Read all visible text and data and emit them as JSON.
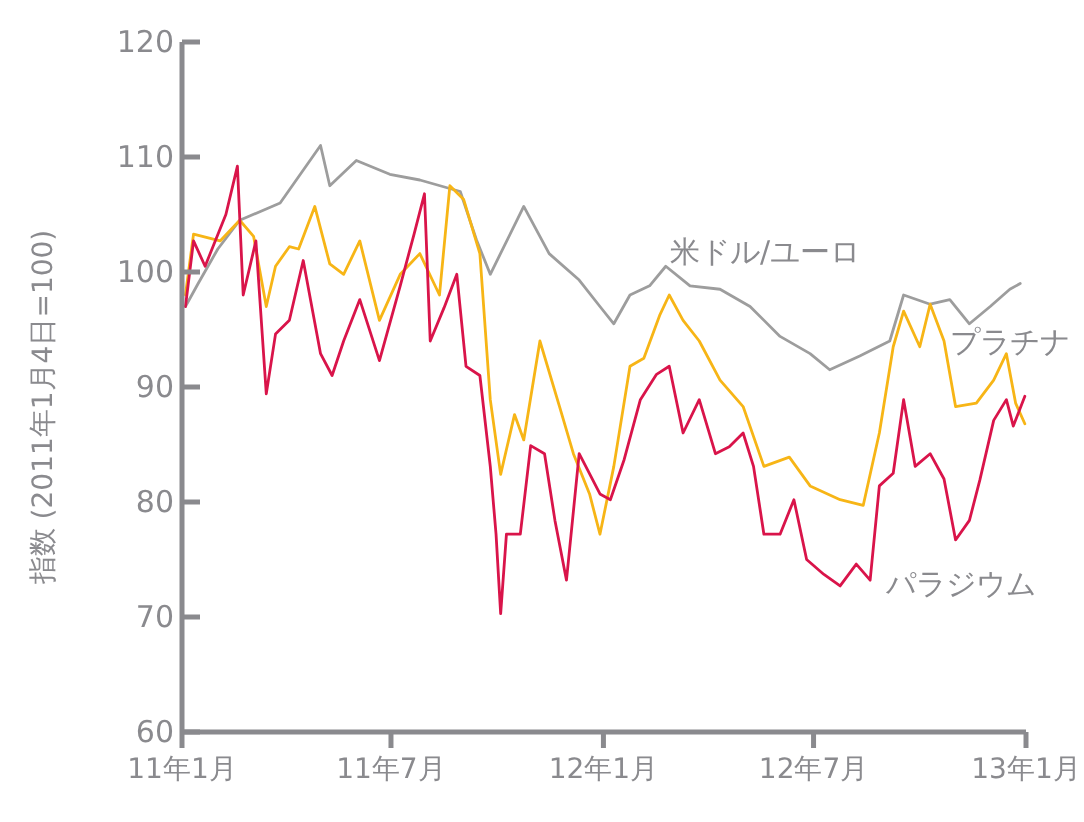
{
  "chart_data": {
    "type": "line",
    "ylabel": "指数 (2011年1月4日=100)",
    "ylim": [
      60,
      120
    ],
    "yticks": [
      60,
      70,
      80,
      90,
      100,
      110,
      120
    ],
    "xlim": [
      "2011-01-01",
      "2013-01-01"
    ],
    "xticks": [
      {
        "value": "2011-01-01",
        "label": "11年1月"
      },
      {
        "value": "2011-07-01",
        "label": "11年7月"
      },
      {
        "value": "2012-01-01",
        "label": "12年1月"
      },
      {
        "value": "2012-07-01",
        "label": "12年7月"
      },
      {
        "value": "2013-01-01",
        "label": "13年1月"
      }
    ],
    "grid": false,
    "legend": false,
    "marker": "none",
    "line_style": "solid",
    "series": [
      {
        "name": "米ドル/ユーロ",
        "color": "#9d9d9d",
        "x": [
          "2011-01-04",
          "2011-01-15",
          "2011-02-01",
          "2011-02-20",
          "2011-03-27",
          "2011-05-01",
          "2011-05-09",
          "2011-06-01",
          "2011-06-30",
          "2011-07-26",
          "2011-08-30",
          "2011-09-13",
          "2011-09-25",
          "2011-10-24",
          "2011-11-15",
          "2011-12-11",
          "2011-12-29",
          "2012-01-10",
          "2012-01-24",
          "2012-02-10",
          "2012-02-24",
          "2012-03-16",
          "2012-04-11",
          "2012-05-07",
          "2012-06-02",
          "2012-06-28",
          "2012-07-15",
          "2012-08-10",
          "2012-09-05",
          "2012-09-17",
          "2012-10-10",
          "2012-10-27",
          "2012-11-13",
          "2012-12-01",
          "2012-12-18",
          "2012-12-27"
        ],
        "values": [
          97,
          99,
          102,
          104.5,
          106,
          111,
          107.5,
          109.7,
          108.5,
          108,
          107,
          102.8,
          99.8,
          105.7,
          101.6,
          99.3,
          97,
          95.5,
          98,
          98.8,
          100.5,
          98.8,
          98.5,
          97,
          94.4,
          92.9,
          91.5,
          92.7,
          94,
          98,
          97.2,
          97.6,
          95.5,
          97,
          98.5,
          99
        ]
      },
      {
        "name": "プラチナ",
        "color": "#f7b516",
        "x": [
          "2011-01-04",
          "2011-01-11",
          "2011-02-03",
          "2011-02-20",
          "2011-03-04",
          "2011-03-15",
          "2011-03-23",
          "2011-04-04",
          "2011-04-12",
          "2011-04-26",
          "2011-05-09",
          "2011-05-21",
          "2011-06-04",
          "2011-06-21",
          "2011-07-09",
          "2011-07-26",
          "2011-08-12",
          "2011-08-21",
          "2011-09-02",
          "2011-09-16",
          "2011-09-25",
          "2011-10-04",
          "2011-10-16",
          "2011-10-24",
          "2011-11-07",
          "2011-11-24",
          "2011-12-06",
          "2011-12-20",
          "2011-12-29",
          "2012-01-10",
          "2012-01-24",
          "2012-02-05",
          "2012-02-19",
          "2012-02-27",
          "2012-03-10",
          "2012-03-24",
          "2012-04-11",
          "2012-05-01",
          "2012-05-19",
          "2012-06-10",
          "2012-06-28",
          "2012-07-24",
          "2012-08-13",
          "2012-08-27",
          "2012-09-08",
          "2012-09-17",
          "2012-10-01",
          "2012-10-10",
          "2012-10-22",
          "2012-11-01",
          "2012-11-19",
          "2012-12-04",
          "2012-12-15",
          "2012-12-23",
          "2012-12-31"
        ],
        "values": [
          98,
          103.3,
          102.7,
          104.5,
          103.1,
          97,
          100.5,
          102.2,
          102,
          105.7,
          100.7,
          99.8,
          102.7,
          95.8,
          99.8,
          101.6,
          98,
          107.5,
          106.3,
          101.6,
          88.9,
          82.4,
          87.6,
          85.4,
          94,
          88.3,
          84.2,
          80.7,
          77.2,
          83.1,
          91.8,
          92.5,
          96.3,
          98,
          95.8,
          94,
          90.6,
          88.3,
          83.1,
          83.9,
          81.4,
          80.2,
          79.7,
          86,
          93.5,
          96.6,
          93.5,
          97.2,
          94,
          88.3,
          88.6,
          90.6,
          92.9,
          88.6,
          86.8
        ]
      },
      {
        "name": "パラジウム",
        "color": "#d9144a",
        "x": [
          "2011-01-04",
          "2011-01-11",
          "2011-01-21",
          "2011-02-08",
          "2011-02-18",
          "2011-02-23",
          "2011-03-06",
          "2011-03-15",
          "2011-03-23",
          "2011-04-04",
          "2011-04-16",
          "2011-05-01",
          "2011-05-11",
          "2011-05-21",
          "2011-06-04",
          "2011-06-21",
          "2011-07-09",
          "2011-07-21",
          "2011-07-30",
          "2011-08-04",
          "2011-08-16",
          "2011-08-27",
          "2011-09-04",
          "2011-09-16",
          "2011-09-25",
          "2011-09-30",
          "2011-10-04",
          "2011-10-09",
          "2011-10-21",
          "2011-10-30",
          "2011-11-11",
          "2011-11-20",
          "2011-11-30",
          "2011-12-11",
          "2011-12-29",
          "2012-01-07",
          "2012-01-19",
          "2012-02-02",
          "2012-02-16",
          "2012-02-27",
          "2012-03-10",
          "2012-03-24",
          "2012-04-07",
          "2012-04-19",
          "2012-05-01",
          "2012-05-10",
          "2012-05-19",
          "2012-06-02",
          "2012-06-14",
          "2012-06-25",
          "2012-07-10",
          "2012-07-24",
          "2012-08-07",
          "2012-08-19",
          "2012-08-27",
          "2012-09-08",
          "2012-09-17",
          "2012-09-27",
          "2012-10-10",
          "2012-10-22",
          "2012-11-01",
          "2012-11-13",
          "2012-11-22",
          "2012-12-04",
          "2012-12-15",
          "2012-12-21",
          "2012-12-31"
        ],
        "values": [
          97,
          102.7,
          100.5,
          105,
          109.2,
          98,
          102.7,
          89.4,
          94.6,
          95.8,
          101,
          92.9,
          91,
          94,
          97.6,
          92.3,
          98.8,
          103.3,
          106.8,
          94,
          96.9,
          99.8,
          91.8,
          91,
          83.1,
          77.2,
          70.3,
          77.2,
          77.2,
          84.9,
          84.2,
          78.4,
          73.2,
          84.2,
          80.7,
          80.2,
          83.7,
          88.9,
          91.1,
          91.8,
          86,
          88.9,
          84.2,
          84.8,
          86,
          83.1,
          77.2,
          77.2,
          80.2,
          75,
          73.7,
          72.7,
          74.6,
          73.2,
          81.4,
          82.5,
          88.9,
          83.1,
          84.2,
          82,
          76.7,
          78.4,
          81.9,
          87.1,
          88.9,
          86.6,
          89.2
        ]
      }
    ]
  }
}
